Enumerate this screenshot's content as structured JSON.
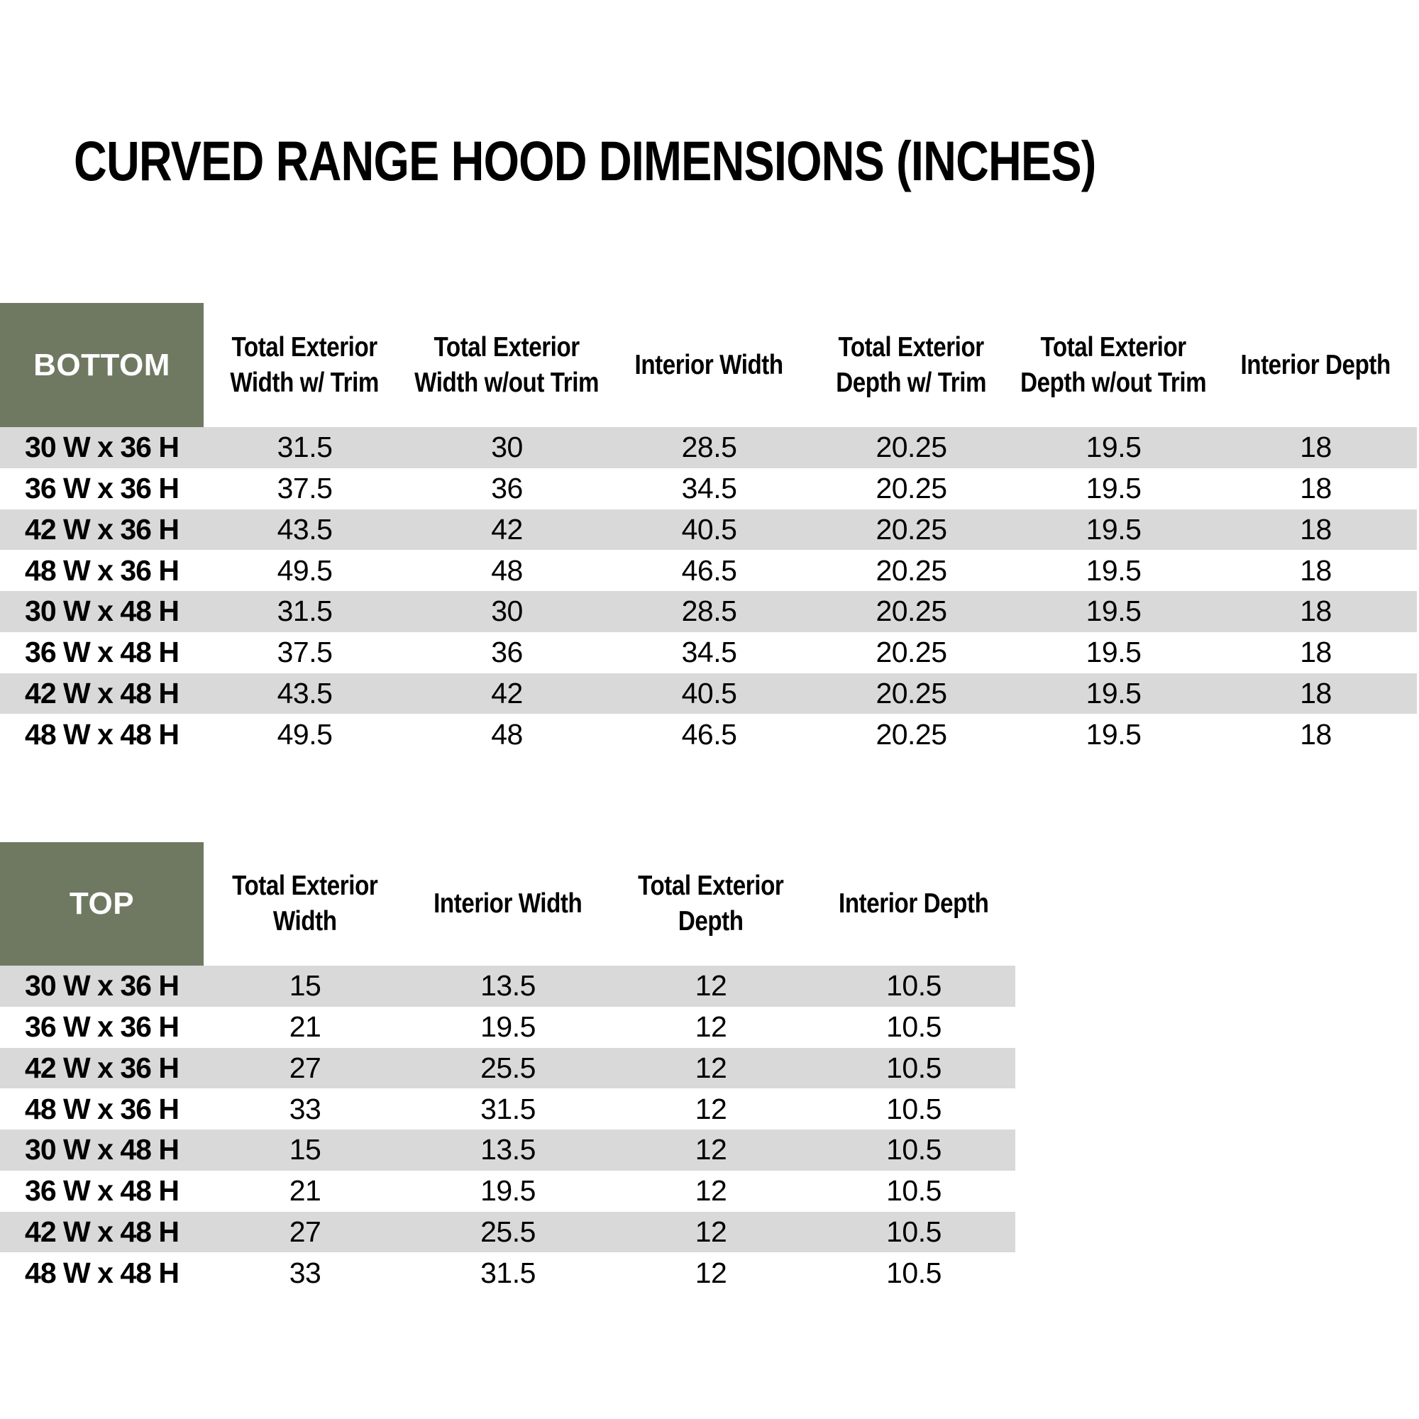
{
  "title": "CURVED RANGE HOOD DIMENSIONS (INCHES)",
  "colors": {
    "header_green": "#6F7962",
    "row_gray": "#D9D9D9",
    "row_white": "#FFFFFF",
    "text": "#000000",
    "corner_text": "#FFFFFF"
  },
  "tables": [
    {
      "id": "bottom",
      "corner_label": "BOTTOM",
      "columns": [
        "Total Exterior Width w/ Trim",
        "Total Exterior Width w/out Trim",
        "Interior Width",
        "Total Exterior Depth w/ Trim",
        "Total Exterior Depth w/out Trim",
        "Interior Depth"
      ],
      "rows": [
        {
          "label": "30 W x 36 H",
          "values": [
            "31.5",
            "30",
            "28.5",
            "20.25",
            "19.5",
            "18"
          ]
        },
        {
          "label": "36 W x 36 H",
          "values": [
            "37.5",
            "36",
            "34.5",
            "20.25",
            "19.5",
            "18"
          ]
        },
        {
          "label": "42 W x 36 H",
          "values": [
            "43.5",
            "42",
            "40.5",
            "20.25",
            "19.5",
            "18"
          ]
        },
        {
          "label": "48 W x 36 H",
          "values": [
            "49.5",
            "48",
            "46.5",
            "20.25",
            "19.5",
            "18"
          ]
        },
        {
          "label": "30 W x 48 H",
          "values": [
            "31.5",
            "30",
            "28.5",
            "20.25",
            "19.5",
            "18"
          ]
        },
        {
          "label": "36 W x 48 H",
          "values": [
            "37.5",
            "36",
            "34.5",
            "20.25",
            "19.5",
            "18"
          ]
        },
        {
          "label": "42 W x 48 H",
          "values": [
            "43.5",
            "42",
            "40.5",
            "20.25",
            "19.5",
            "18"
          ]
        },
        {
          "label": "48 W x 48 H",
          "values": [
            "49.5",
            "48",
            "46.5",
            "20.25",
            "19.5",
            "18"
          ]
        }
      ]
    },
    {
      "id": "top",
      "corner_label": "TOP",
      "columns": [
        "Total Exterior Width",
        "Interior Width",
        "Total Exterior Depth",
        "Interior Depth"
      ],
      "rows": [
        {
          "label": "30 W x 36 H",
          "values": [
            "15",
            "13.5",
            "12",
            "10.5"
          ]
        },
        {
          "label": "36 W x 36 H",
          "values": [
            "21",
            "19.5",
            "12",
            "10.5"
          ]
        },
        {
          "label": "42 W x 36 H",
          "values": [
            "27",
            "25.5",
            "12",
            "10.5"
          ]
        },
        {
          "label": "48 W x 36 H",
          "values": [
            "33",
            "31.5",
            "12",
            "10.5"
          ]
        },
        {
          "label": "30 W x 48 H",
          "values": [
            "15",
            "13.5",
            "12",
            "10.5"
          ]
        },
        {
          "label": "36 W x 48 H",
          "values": [
            "21",
            "19.5",
            "12",
            "10.5"
          ]
        },
        {
          "label": "42 W x 48 H",
          "values": [
            "27",
            "25.5",
            "12",
            "10.5"
          ]
        },
        {
          "label": "48 W x 48 H",
          "values": [
            "33",
            "31.5",
            "12",
            "10.5"
          ]
        }
      ]
    }
  ]
}
